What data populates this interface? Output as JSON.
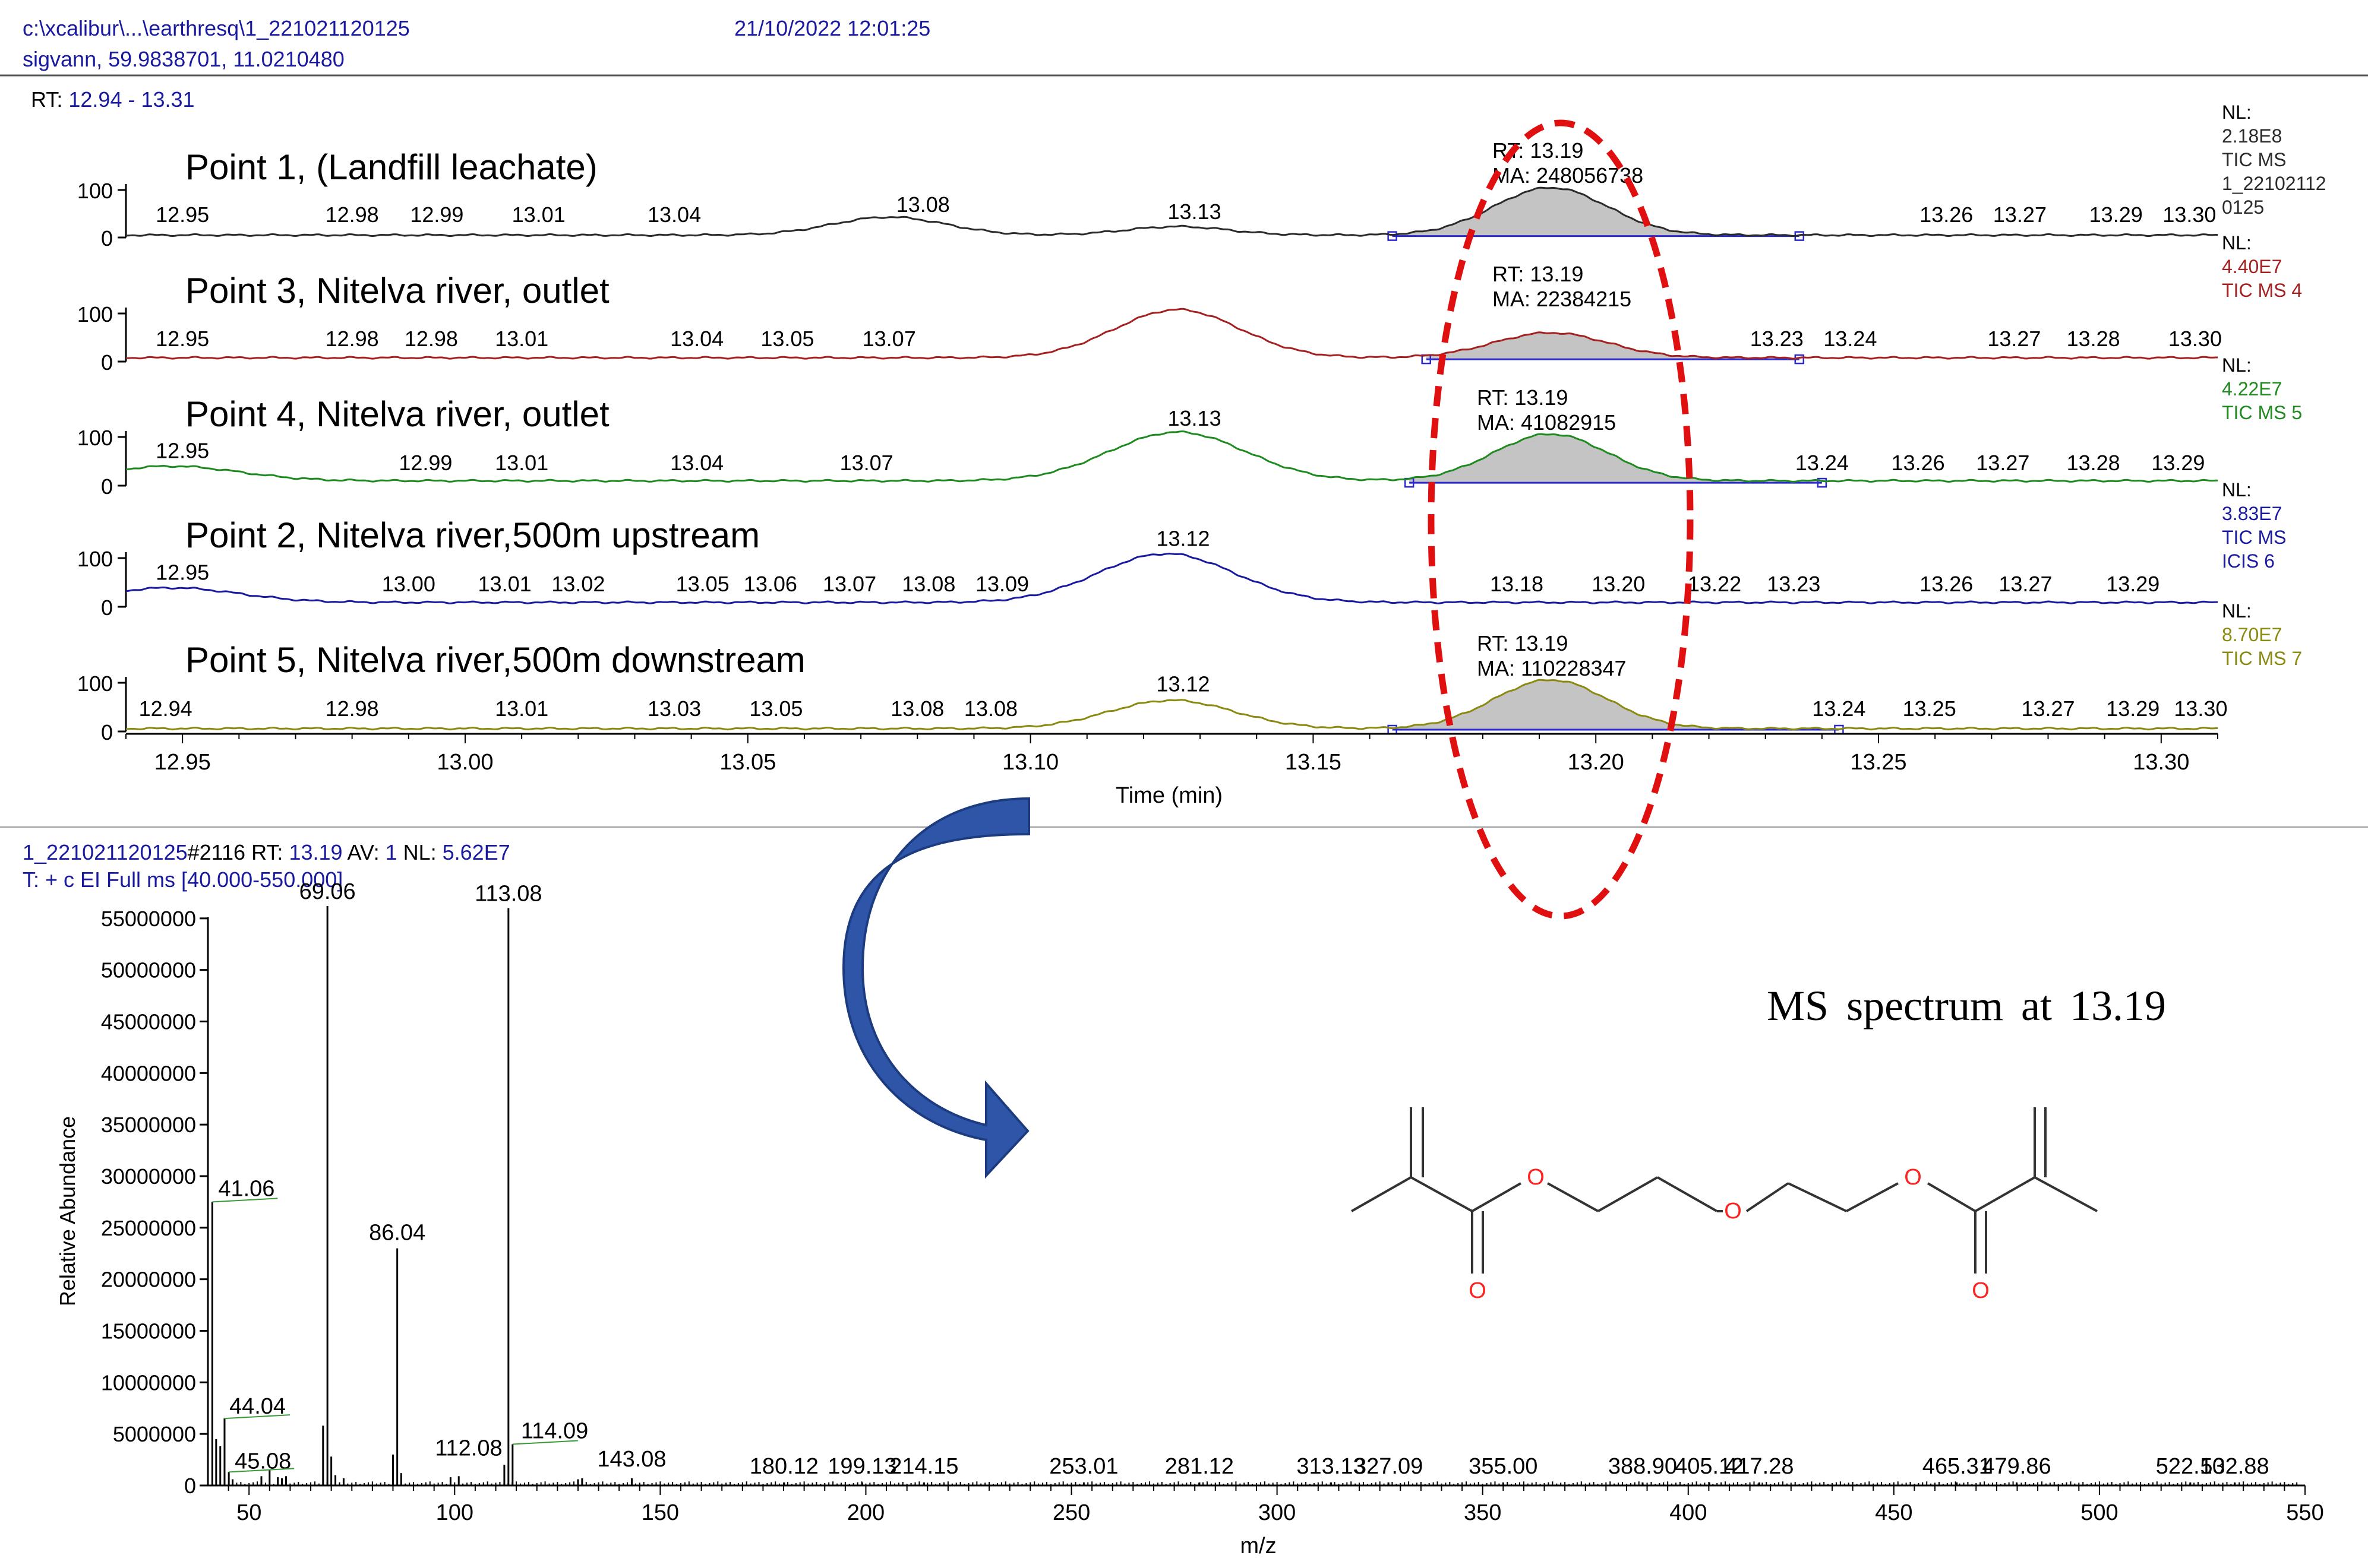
{
  "header": {
    "file_path": "c:\\xcalibur\\...\\earthresq\\1_221021120125",
    "datetime": "21/10/2022 12:01:25",
    "sample": "sigvann, 59.9838701, 11.0210480",
    "rt_label": "RT:",
    "rt_range": "12.94 - 13.31"
  },
  "colors": {
    "trace1": "#2b2b2b",
    "trace2": "#a52020",
    "trace3": "#1f8a1f",
    "trace4": "#1a1aa0",
    "trace5": "#8a8a10",
    "peak_fill": "#c4c4c4",
    "ellipse": "#e01010",
    "arrow": "#2e55a8",
    "oxygen": "#ff2020",
    "header_blue": "#1a1aa0"
  },
  "chart_data": [
    {
      "type": "line",
      "title": "",
      "xlabel": "Time (min)",
      "ylabel": "",
      "xlim": [
        12.94,
        13.31
      ],
      "ylim": [
        0,
        100
      ],
      "x_ticks": [
        "12.95",
        "13.00",
        "13.05",
        "13.10",
        "13.15",
        "13.20",
        "13.25",
        "13.30"
      ],
      "y_tick_labels": [
        "0",
        "100"
      ],
      "peak_marker": {
        "rt_text": "RT: 13.19",
        "rt": 13.19
      },
      "series": [
        {
          "name": "Point 1, (Landfill leachate)",
          "color_key": "trace1",
          "nl": [
            "NL:",
            "2.18E8",
            "TIC  MS",
            "1_22102112",
            "0125"
          ],
          "peak_area_text": "MA: 248056738",
          "peak_rt_text": "RT: 13.19",
          "peaks": [
            [
              13.075,
              38,
              0.01
            ],
            [
              13.126,
              18,
              0.009
            ],
            [
              13.192,
              100,
              0.01
            ]
          ],
          "baseline": 5,
          "integ": [
            13.164,
            13.236
          ],
          "labels": [
            [
              12.95,
              "12.95"
            ],
            [
              12.98,
              "12.98"
            ],
            [
              12.995,
              "12.99"
            ],
            [
              13.013,
              "13.01"
            ],
            [
              13.037,
              "13.04"
            ],
            [
              13.081,
              "13.08"
            ],
            [
              13.129,
              "13.13"
            ],
            [
              13.262,
              "13.26"
            ],
            [
              13.275,
              "13.27"
            ],
            [
              13.292,
              "13.29"
            ],
            [
              13.305,
              "13.30"
            ]
          ]
        },
        {
          "name": "Point 3, Nitelva river, outlet",
          "color_key": "trace2",
          "nl": [
            "NL:",
            "4.40E7",
            "TIC  MS 4"
          ],
          "peak_area_text": "MA: 22384215",
          "peak_rt_text": "RT: 13.19",
          "peaks": [
            [
              13.126,
              100,
              0.011
            ],
            [
              13.192,
              52,
              0.01
            ]
          ],
          "baseline": 8,
          "integ": [
            13.17,
            13.236
          ],
          "labels": [
            [
              12.95,
              "12.95"
            ],
            [
              12.98,
              "12.98"
            ],
            [
              12.994,
              "12.98"
            ],
            [
              13.01,
              "13.01"
            ],
            [
              13.041,
              "13.04"
            ],
            [
              13.057,
              "13.05"
            ],
            [
              13.075,
              "13.07"
            ],
            [
              13.232,
              "13.23"
            ],
            [
              13.245,
              "13.24"
            ],
            [
              13.274,
              "13.27"
            ],
            [
              13.288,
              "13.28"
            ],
            [
              13.306,
              "13.30"
            ]
          ]
        },
        {
          "name": "Point 4, Nitelva river, outlet",
          "color_key": "trace3",
          "nl": [
            "NL:",
            "4.22E7",
            "TIC  MS 5"
          ],
          "peak_area_text": "MA: 41082915",
          "peak_rt_text": "RT: 13.19",
          "peaks": [
            [
              12.948,
              30,
              0.012
            ],
            [
              13.126,
              100,
              0.012
            ],
            [
              13.192,
              96,
              0.01
            ]
          ],
          "baseline": 10,
          "integ": [
            13.167,
            13.24
          ],
          "labels": [
            [
              12.95,
              "12.95"
            ],
            [
              12.993,
              "12.99"
            ],
            [
              13.01,
              "13.01"
            ],
            [
              13.041,
              "13.04"
            ],
            [
              13.071,
              "13.07"
            ],
            [
              13.129,
              "13.13"
            ],
            [
              13.24,
              "13.24"
            ],
            [
              13.257,
              "13.26"
            ],
            [
              13.272,
              "13.27"
            ],
            [
              13.288,
              "13.28"
            ],
            [
              13.303,
              "13.29"
            ]
          ]
        },
        {
          "name": "Point 2, Nitelva river,500m upstream",
          "color_key": "trace4",
          "nl": [
            "NL:",
            "3.83E7",
            "TIC  MS",
            "ICIS 6"
          ],
          "peak_area_text": "",
          "peak_rt_text": "",
          "peaks": [
            [
              12.948,
              30,
              0.012
            ],
            [
              13.124,
              100,
              0.012
            ]
          ],
          "baseline": 9,
          "integ": [],
          "labels": [
            [
              12.95,
              "12.95"
            ],
            [
              12.99,
              "13.00"
            ],
            [
              13.007,
              "13.01"
            ],
            [
              13.02,
              "13.02"
            ],
            [
              13.042,
              "13.05"
            ],
            [
              13.054,
              "13.06"
            ],
            [
              13.068,
              "13.07"
            ],
            [
              13.082,
              "13.08"
            ],
            [
              13.095,
              "13.09"
            ],
            [
              13.127,
              "13.12"
            ],
            [
              13.186,
              "13.18"
            ],
            [
              13.204,
              "13.20"
            ],
            [
              13.221,
              "13.22"
            ],
            [
              13.235,
              "13.23"
            ],
            [
              13.262,
              "13.26"
            ],
            [
              13.276,
              "13.27"
            ],
            [
              13.295,
              "13.29"
            ]
          ]
        },
        {
          "name": "Point 5, Nitelva river,500m downstream",
          "color_key": "trace5",
          "nl": [
            "NL:",
            "8.70E7",
            "TIC  MS 7"
          ],
          "peak_area_text": "MA: 110228347",
          "peak_rt_text": "RT: 13.19",
          "peaks": [
            [
              13.125,
              58,
              0.011
            ],
            [
              13.192,
              100,
              0.01
            ]
          ],
          "baseline": 6,
          "integ": [
            13.164,
            13.243
          ],
          "labels": [
            [
              12.947,
              "12.94"
            ],
            [
              12.98,
              "12.98"
            ],
            [
              13.01,
              "13.01"
            ],
            [
              13.037,
              "13.03"
            ],
            [
              13.055,
              "13.05"
            ],
            [
              13.08,
              "13.08"
            ],
            [
              13.093,
              "13.08"
            ],
            [
              13.127,
              "13.12"
            ],
            [
              13.243,
              "13.24"
            ],
            [
              13.259,
              "13.25"
            ],
            [
              13.28,
              "13.27"
            ],
            [
              13.295,
              "13.29"
            ],
            [
              13.307,
              "13.30"
            ]
          ]
        }
      ]
    },
    {
      "type": "bar",
      "title": "MS spectrum at 13.19",
      "scan_info": {
        "file": "1_221021120125",
        "scan": "#2116",
        "rt_label": "RT:",
        "rt": "13.19",
        "av_label": "AV:",
        "av": "1",
        "nl_label": "NL:",
        "nl": "5.62E7",
        "filter": "T: + c EI Full ms [40.000-550.000]"
      },
      "xlabel": "m/z",
      "ylabel": "Relative Abundance",
      "xlim": [
        40,
        550
      ],
      "ylim": [
        0,
        56200000
      ],
      "x_ticks": [
        "50",
        "100",
        "150",
        "200",
        "250",
        "300",
        "350",
        "400",
        "450",
        "500",
        "550"
      ],
      "y_ticks": [
        "0",
        "5000000",
        "10000000",
        "15000000",
        "20000000",
        "25000000",
        "30000000",
        "35000000",
        "40000000",
        "45000000",
        "50000000",
        "55000000"
      ],
      "peaks": [
        {
          "mz": 41.06,
          "value": 27500000,
          "label": "41.06"
        },
        {
          "mz": 44.04,
          "value": 6500000,
          "label": "44.04"
        },
        {
          "mz": 45.08,
          "value": 1300000,
          "label": "45.08"
        },
        {
          "mz": 69.06,
          "value": 56200000,
          "label": "69.06"
        },
        {
          "mz": 86.04,
          "value": 23000000,
          "label": "86.04"
        },
        {
          "mz": 112.08,
          "value": 2000000,
          "label": "112.08"
        },
        {
          "mz": 113.08,
          "value": 56000000,
          "label": "113.08"
        },
        {
          "mz": 114.09,
          "value": 4000000,
          "label": "114.09"
        },
        {
          "mz": 143.08,
          "value": 700000,
          "label": "143.08"
        },
        {
          "mz": 180.12,
          "value": 300000,
          "label": "180.12"
        },
        {
          "mz": 199.13,
          "value": 300000,
          "label": "199.13"
        },
        {
          "mz": 214.15,
          "value": 300000,
          "label": "214.15"
        },
        {
          "mz": 253.01,
          "value": 300000,
          "label": "253.01"
        },
        {
          "mz": 281.12,
          "value": 300000,
          "label": "281.12"
        },
        {
          "mz": 313.13,
          "value": 300000,
          "label": "313.13"
        },
        {
          "mz": 327.09,
          "value": 300000,
          "label": "327.09"
        },
        {
          "mz": 355.0,
          "value": 300000,
          "label": "355.00"
        },
        {
          "mz": 388.9,
          "value": 300000,
          "label": "388.90"
        },
        {
          "mz": 405.12,
          "value": 300000,
          "label": "405.12"
        },
        {
          "mz": 417.28,
          "value": 300000,
          "label": "417.28"
        },
        {
          "mz": 465.31,
          "value": 300000,
          "label": "465.31"
        },
        {
          "mz": 479.86,
          "value": 300000,
          "label": "479.86"
        },
        {
          "mz": 522.1,
          "value": 300000,
          "label": "522.10"
        },
        {
          "mz": 532.88,
          "value": 300000,
          "label": "532.88"
        }
      ],
      "minor_peaks": [
        [
          42,
          4500000
        ],
        [
          43,
          3800000
        ],
        [
          46,
          600000
        ],
        [
          53,
          900000
        ],
        [
          55,
          1500000
        ],
        [
          57,
          800000
        ],
        [
          58,
          700000
        ],
        [
          59,
          900000
        ],
        [
          68,
          5800000
        ],
        [
          70,
          2800000
        ],
        [
          71,
          1000000
        ],
        [
          73,
          700000
        ],
        [
          85,
          3000000
        ],
        [
          87,
          1200000
        ],
        [
          99,
          800000
        ],
        [
          101,
          900000
        ],
        [
          130,
          600000
        ],
        [
          131,
          700000
        ]
      ]
    }
  ],
  "structure": {
    "atoms": [
      {
        "id": "o1",
        "label": "O"
      },
      {
        "id": "o2",
        "label": "O"
      },
      {
        "id": "o3",
        "label": "O"
      },
      {
        "id": "o4",
        "label": "O"
      },
      {
        "id": "o5",
        "label": "O"
      }
    ]
  }
}
